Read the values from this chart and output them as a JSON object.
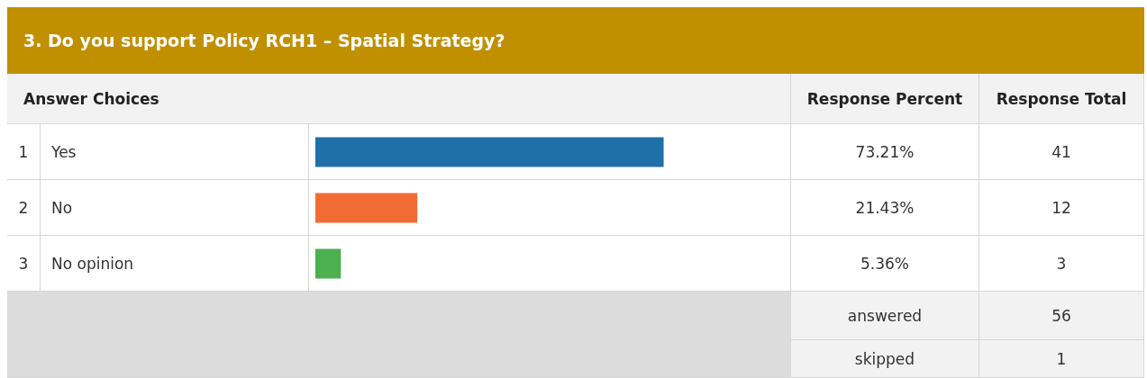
{
  "chart_data": {
    "type": "bar",
    "orientation": "horizontal",
    "title": "3. Do you support Policy RCH1 – Spatial Strategy?",
    "categories": [
      "Yes",
      "No",
      "No opinion"
    ],
    "values": [
      73.21,
      21.43,
      5.36
    ],
    "colors": [
      "#1f6fa8",
      "#f26b35",
      "#4caf50"
    ],
    "value_labels": [
      "73.21%",
      "21.43%",
      "5.36%"
    ],
    "xlim": [
      0,
      100
    ],
    "tick_labels": false,
    "legend": false,
    "annotations": [
      "Answer Choices",
      "Response Percent",
      "Response Total",
      "1",
      "2",
      "3",
      "41",
      "12",
      "3",
      "answered",
      "56",
      "skipped",
      "1"
    ]
  }
}
